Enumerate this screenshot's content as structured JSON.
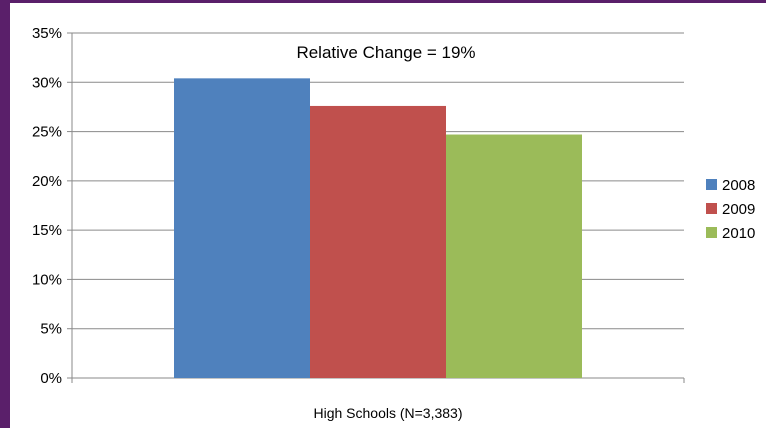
{
  "chart_data": {
    "type": "bar",
    "categories": [
      "High Schools (N=3,383)"
    ],
    "series": [
      {
        "name": "2008",
        "values": [
          30.4
        ],
        "color": "#4f81bd"
      },
      {
        "name": "2009",
        "values": [
          27.6
        ],
        "color": "#c0504d"
      },
      {
        "name": "2010",
        "values": [
          24.7
        ],
        "color": "#9bbb59"
      }
    ],
    "ylim": [
      0,
      35
    ],
    "yticks": [
      "0%",
      "5%",
      "10%",
      "15%",
      "20%",
      "25%",
      "30%",
      "35%"
    ],
    "annotation": "Relative Change = 19%",
    "grid": true,
    "legend_position": "right"
  }
}
